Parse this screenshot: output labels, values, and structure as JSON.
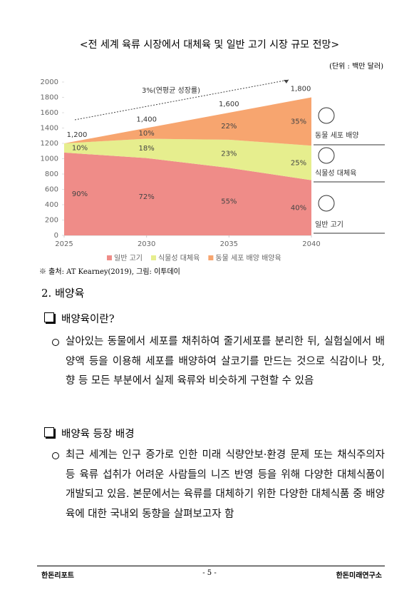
{
  "title": "<전 세계 육류 시장에서 대체육 및 일반 고기 시장 규모 전망>",
  "unit": "(단위 : 백만 달러)",
  "chart_data": {
    "type": "stacked_area",
    "x": [
      2025,
      2030,
      2035,
      2040
    ],
    "xlim": [
      2025,
      2040
    ],
    "xticks": [
      2025,
      2030,
      2035,
      2040
    ],
    "ylim": [
      0,
      2000
    ],
    "yticks": [
      0,
      200,
      400,
      600,
      800,
      1000,
      1200,
      1400,
      1600,
      1800,
      2000
    ],
    "series": [
      {
        "name": "일반 고기",
        "color": "#ef8c88",
        "values": [
          1080,
          1008,
          880,
          720
        ],
        "share_labels": [
          "90%",
          "72%",
          "55%",
          "40%"
        ]
      },
      {
        "name": "식물성 대체육",
        "color": "#e6ee8e",
        "values": [
          120,
          252,
          368,
          450
        ],
        "share_labels": [
          "10%",
          "18%",
          "23%",
          "25%"
        ]
      },
      {
        "name": "동물 세포 배양 배양육",
        "color": "#f7a56f",
        "values": [
          0,
          140,
          352,
          630
        ],
        "share_labels": [
          null,
          "10%",
          "22%",
          "35%"
        ]
      }
    ],
    "totals": [
      1200,
      1400,
      1600,
      1800
    ],
    "total_labels": [
      "1,200",
      "1,400",
      "1,600",
      "1,800"
    ],
    "annotation": "3%(연평균 성장률)",
    "side_labels": [
      "동물 세포 배양",
      "식물성 대체육",
      "일반 고기"
    ],
    "legend": "bottom"
  },
  "source": "※ 출처: AT Kearney(2019), 그림: 이투데이",
  "section": "2. 배양육",
  "subsections": [
    {
      "heading": "배양육이란?",
      "bullets": [
        "살아있는 동물에서 세포를 채취하여 줄기세포를 분리한 뒤, 실험실에서 배양액 등을 이용해 세포를 배양하여 살코기를 만드는 것으로 식감이나 맛, 향 등 모든 부분에서 실제 육류와 비슷하게 구현할 수 있음"
      ]
    },
    {
      "heading": "배양육 등장 배경",
      "bullets": [
        "최근 세계는 인구 증가로 인한 미래 식량안보·환경 문제 또는 채식주의자 등 육류 섭취가 어려운 사람들의 니즈 반영 등을 위해 다양한 대체식품이 개발되고 있음. 본문에서는 육류를 대체하기 위한 다양한 대체식품 중 배양육에 대한 국내외 동향을 살펴보고자 함"
      ]
    }
  ],
  "footer": {
    "left": "한돈리포트",
    "center": "- 5 -",
    "right": "한돈미래연구소"
  }
}
